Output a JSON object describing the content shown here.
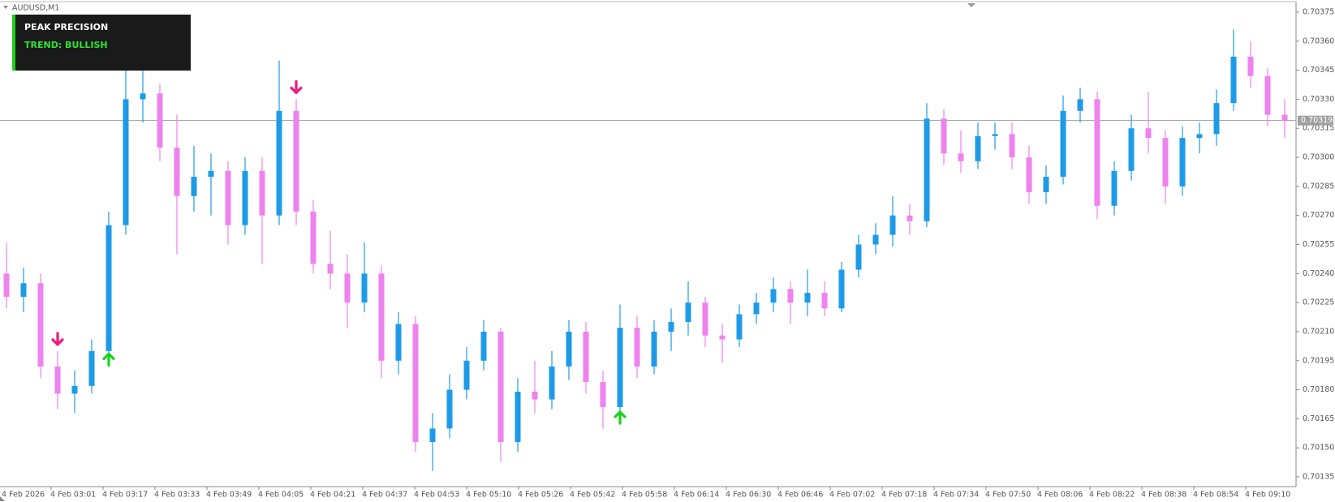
{
  "symbol": "AUDUSD,M1",
  "panel": {
    "title": "PEAK PRECISION",
    "trend": "TREND: BULLISH"
  },
  "chart_data": {
    "type": "candlestick",
    "up_color": "#1e9be8",
    "down_color": "#ee82ee",
    "open": [
      0.7024,
      0.70228,
      0.70235,
      0.70192,
      0.70178,
      0.70182,
      0.702,
      0.70265,
      0.7033,
      0.70333,
      0.70305,
      0.7028,
      0.7029,
      0.70293,
      0.70265,
      0.70293,
      0.7027,
      0.70324,
      0.70272,
      0.70245,
      0.7024,
      0.70225,
      0.7024,
      0.70195,
      0.70214,
      0.70153,
      0.7016,
      0.7018,
      0.70195,
      0.7021,
      0.70153,
      0.70179,
      0.70175,
      0.70192,
      0.7021,
      0.70184,
      0.70171,
      0.70212,
      0.70192,
      0.7021,
      0.70215,
      0.70225,
      0.70208,
      0.70206,
      0.70219,
      0.70225,
      0.70232,
      0.70225,
      0.7023,
      0.70222,
      0.70242,
      0.70255,
      0.7026,
      0.7027,
      0.70267,
      0.7032,
      0.70302,
      0.70298,
      0.70311,
      0.70312,
      0.703,
      0.70282,
      0.7029,
      0.70324,
      0.7033,
      0.70275,
      0.70293,
      0.70315,
      0.7031,
      0.70285,
      0.7031,
      0.70312,
      0.70328,
      0.70352,
      0.70342,
      0.70322
    ],
    "high": [
      0.70256,
      0.70243,
      0.7024,
      0.702,
      0.7019,
      0.70206,
      0.70272,
      0.70346,
      0.7035,
      0.70338,
      0.70322,
      0.70306,
      0.70302,
      0.70298,
      0.703,
      0.703,
      0.7035,
      0.7033,
      0.70278,
      0.70262,
      0.7025,
      0.70256,
      0.70244,
      0.7022,
      0.70218,
      0.70168,
      0.70188,
      0.70202,
      0.70216,
      0.70212,
      0.70186,
      0.70195,
      0.702,
      0.70216,
      0.70215,
      0.7019,
      0.70224,
      0.70218,
      0.70216,
      0.70222,
      0.70236,
      0.70228,
      0.70214,
      0.70224,
      0.7023,
      0.70238,
      0.70236,
      0.70242,
      0.70236,
      0.70246,
      0.7026,
      0.70266,
      0.7028,
      0.70276,
      0.70328,
      0.70325,
      0.70314,
      0.70318,
      0.70318,
      0.70318,
      0.70306,
      0.70296,
      0.70332,
      0.70336,
      0.70334,
      0.70298,
      0.70322,
      0.70334,
      0.70314,
      0.70316,
      0.70318,
      0.70335,
      0.70366,
      0.7036,
      0.70346,
      0.7033
    ],
    "low": [
      0.70222,
      0.7022,
      0.70186,
      0.7017,
      0.70168,
      0.70178,
      0.70196,
      0.7026,
      0.70318,
      0.70298,
      0.7025,
      0.70272,
      0.7027,
      0.70255,
      0.7026,
      0.70245,
      0.70265,
      0.70265,
      0.7024,
      0.70232,
      0.70212,
      0.7022,
      0.70186,
      0.70188,
      0.70148,
      0.70138,
      0.70155,
      0.70175,
      0.7019,
      0.70143,
      0.70148,
      0.70168,
      0.7017,
      0.70185,
      0.70178,
      0.7016,
      0.70166,
      0.70186,
      0.70188,
      0.702,
      0.70208,
      0.70202,
      0.70194,
      0.70202,
      0.70214,
      0.7022,
      0.70214,
      0.70218,
      0.70218,
      0.7022,
      0.70238,
      0.7025,
      0.70254,
      0.7026,
      0.70264,
      0.70296,
      0.70292,
      0.70294,
      0.70304,
      0.70294,
      0.70276,
      0.70276,
      0.70286,
      0.70318,
      0.70268,
      0.7027,
      0.70288,
      0.70302,
      0.70276,
      0.7028,
      0.70302,
      0.70306,
      0.70324,
      0.70336,
      0.70316,
      0.7031
    ],
    "close": [
      0.70228,
      0.70235,
      0.70192,
      0.70178,
      0.70182,
      0.702,
      0.70265,
      0.7033,
      0.70333,
      0.70305,
      0.7028,
      0.7029,
      0.70293,
      0.70265,
      0.70293,
      0.7027,
      0.70324,
      0.70272,
      0.70245,
      0.7024,
      0.70225,
      0.7024,
      0.70195,
      0.70214,
      0.70153,
      0.7016,
      0.7018,
      0.70195,
      0.7021,
      0.70153,
      0.70179,
      0.70175,
      0.70192,
      0.7021,
      0.70184,
      0.70171,
      0.70212,
      0.70192,
      0.7021,
      0.70215,
      0.70225,
      0.70208,
      0.70206,
      0.70219,
      0.70225,
      0.70232,
      0.70225,
      0.7023,
      0.70222,
      0.70242,
      0.70255,
      0.7026,
      0.7027,
      0.70267,
      0.7032,
      0.70302,
      0.70298,
      0.70311,
      0.70312,
      0.703,
      0.70282,
      0.7029,
      0.70324,
      0.7033,
      0.70275,
      0.70293,
      0.70315,
      0.7031,
      0.70285,
      0.7031,
      0.70312,
      0.70328,
      0.70352,
      0.70342,
      0.70322,
      0.70319
    ],
    "signals": {
      "buy": {
        "color": "#19d119",
        "at": [
          6,
          36
        ]
      },
      "sell": {
        "color": "#f0197d",
        "at": [
          3,
          17
        ]
      }
    },
    "last_price": 0.70319,
    "x_labels": [
      "4 Feb 2026",
      "4 Feb 03:01",
      "4 Feb 03:17",
      "4 Feb 03:33",
      "4 Feb 03:49",
      "4 Feb 04:05",
      "4 Feb 04:21",
      "4 Feb 04:37",
      "4 Feb 04:53",
      "4 Feb 05:10",
      "4 Feb 05:26",
      "4 Feb 05:42",
      "4 Feb 05:58",
      "4 Feb 06:14",
      "4 Feb 06:30",
      "4 Feb 06:46",
      "4 Feb 07:02",
      "4 Feb 07:18",
      "4 Feb 07:34",
      "4 Feb 07:50",
      "4 Feb 08:06",
      "4 Feb 08:22",
      "4 Feb 08:38",
      "4 Feb 08:54",
      "4 Feb 09:10"
    ],
    "ylim": [
      0.7013,
      0.7038
    ],
    "yticks": [
      0.70135,
      {
        "value": 0.7015,
        "label": "0.70150"
      },
      0.70165,
      {
        "value": 0.7018,
        "label": "0.70180"
      },
      0.70195,
      {
        "value": 0.7021,
        "label": "0.70210"
      },
      0.70225,
      {
        "value": 0.7024,
        "label": "0.70240"
      },
      0.70255,
      {
        "value": 0.7027,
        "label": "0.70270"
      },
      0.70285,
      {
        "value": 0.703,
        "label": "0.70300"
      },
      0.70315,
      {
        "value": 0.7033,
        "label": "0.70330"
      },
      0.70345,
      {
        "value": 0.7036,
        "label": "0.70360"
      },
      0.70375
    ]
  }
}
